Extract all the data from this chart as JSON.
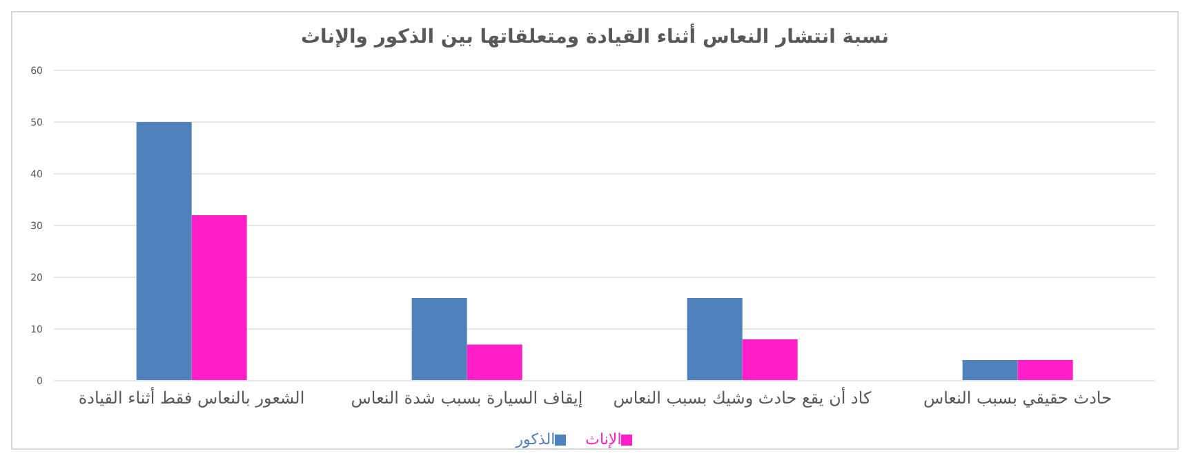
{
  "chart_data": {
    "type": "bar",
    "title": "نسبة انتشار النعاس أثناء القيادة ومتعلقاتها بين الذكور والإناث",
    "categories": [
      "الشعور بالنعاس فقط أثناء القيادة",
      "إيقاف السيارة بسبب شدة النعاس",
      "كاد أن يقع حادث وشيك بسبب النعاس",
      "حادث حقيقي بسبب النعاس"
    ],
    "series": [
      {
        "name": "الذكور",
        "color": "#4f81bd",
        "values": [
          50,
          16,
          16,
          4
        ]
      },
      {
        "name": "الإناث",
        "color": "#ff1fc8",
        "values": [
          32,
          7,
          8,
          4
        ]
      }
    ],
    "ylim": [
      0,
      60
    ],
    "yticks": [
      0,
      10,
      20,
      30,
      40,
      50,
      60
    ],
    "grid": "y",
    "legend": "bottom"
  }
}
